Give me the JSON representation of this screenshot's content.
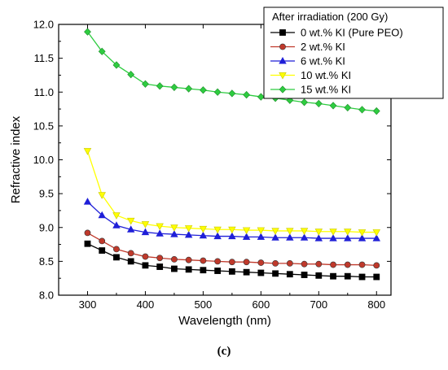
{
  "caption": "(c)",
  "chart_data": {
    "type": "line",
    "xlabel": "Wavelength (nm)",
    "ylabel": "Refractive index",
    "xlim": [
      250,
      825
    ],
    "ylim": [
      8.0,
      12.0
    ],
    "xticks": [
      300,
      400,
      500,
      600,
      700,
      800
    ],
    "yticks": [
      8.0,
      8.5,
      9.0,
      9.5,
      10.0,
      10.5,
      11.0,
      11.5,
      12.0
    ],
    "legend_title": "After  irradiation (200 Gy)",
    "legend_position": "top-right",
    "grid": false,
    "x": [
      300,
      325,
      350,
      375,
      400,
      425,
      450,
      475,
      500,
      525,
      550,
      575,
      600,
      625,
      650,
      675,
      700,
      725,
      750,
      775,
      800
    ],
    "series": [
      {
        "name": "0   wt.% KI (Pure PEO)",
        "color": "#000000",
        "marker": "square",
        "values": [
          8.76,
          8.66,
          8.56,
          8.5,
          8.44,
          8.42,
          8.39,
          8.38,
          8.37,
          8.36,
          8.35,
          8.34,
          8.33,
          8.32,
          8.31,
          8.3,
          8.29,
          8.28,
          8.28,
          8.27,
          8.27
        ]
      },
      {
        "name": "2   wt.% KI",
        "color": "#c0392b",
        "marker": "circle",
        "values": [
          8.92,
          8.8,
          8.68,
          8.62,
          8.57,
          8.55,
          8.53,
          8.52,
          8.51,
          8.5,
          8.49,
          8.49,
          8.48,
          8.47,
          8.47,
          8.46,
          8.46,
          8.45,
          8.45,
          8.45,
          8.44
        ]
      },
      {
        "name": "6   wt.% KI",
        "color": "#1f1fd8",
        "marker": "triangle",
        "values": [
          9.38,
          9.18,
          9.03,
          8.97,
          8.93,
          8.91,
          8.9,
          8.89,
          8.88,
          8.87,
          8.87,
          8.86,
          8.86,
          8.85,
          8.85,
          8.85,
          8.84,
          8.84,
          8.84,
          8.84,
          8.84
        ]
      },
      {
        "name": "10 wt.% KI",
        "color": "#ffff00",
        "marker": "triangle-down",
        "values": [
          10.13,
          9.48,
          9.18,
          9.1,
          9.05,
          9.02,
          9.0,
          8.99,
          8.98,
          8.97,
          8.97,
          8.96,
          8.96,
          8.95,
          8.95,
          8.95,
          8.94,
          8.94,
          8.94,
          8.93,
          8.93
        ]
      },
      {
        "name": "15 wt.% KI",
        "color": "#2ecc40",
        "marker": "diamond",
        "values": [
          11.89,
          11.6,
          11.4,
          11.26,
          11.12,
          11.09,
          11.07,
          11.05,
          11.03,
          11.0,
          10.98,
          10.96,
          10.93,
          10.91,
          10.88,
          10.85,
          10.83,
          10.8,
          10.77,
          10.74,
          10.72
        ]
      }
    ]
  }
}
